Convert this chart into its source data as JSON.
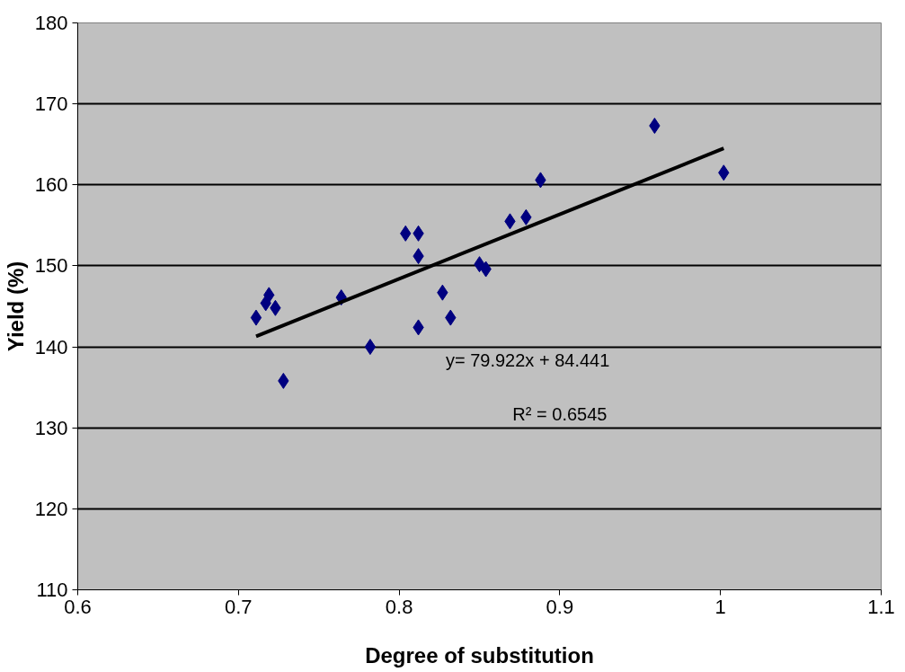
{
  "chart_data": {
    "type": "scatter",
    "xlabel": "Degree of substitution",
    "ylabel": "Yield (%)",
    "xlim": [
      0.6,
      1.1
    ],
    "xticks": [
      0.6,
      0.7,
      0.8,
      0.9,
      1,
      1.1
    ],
    "ylim": [
      110,
      180
    ],
    "yticks": [
      110,
      120,
      130,
      140,
      150,
      160,
      170,
      180
    ],
    "grid": "y",
    "series": [
      {
        "color": "#000080",
        "marker": "diamond",
        "x": [
          0.711,
          0.717,
          0.719,
          0.723,
          0.728,
          0.764,
          0.782,
          0.804,
          0.812,
          0.812,
          0.812,
          0.827,
          0.832,
          0.85,
          0.854,
          0.869,
          0.879,
          0.888,
          0.959,
          1.002
        ],
        "values": [
          143.6,
          145.4,
          146.4,
          144.8,
          135.8,
          146.1,
          140.0,
          154.0,
          154.0,
          151.2,
          142.4,
          146.7,
          143.6,
          150.2,
          149.6,
          155.5,
          156.0,
          160.6,
          167.3,
          161.5
        ]
      },
      {
        "type": "line",
        "marker": "none",
        "color": "#000000",
        "x": [
          0.711,
          1.002
        ],
        "values": [
          141.3,
          164.5
        ]
      }
    ],
    "annotations": [
      {
        "text": "y= 79.922x + 84.441"
      },
      {
        "text": "R² = 0.6545"
      }
    ]
  }
}
